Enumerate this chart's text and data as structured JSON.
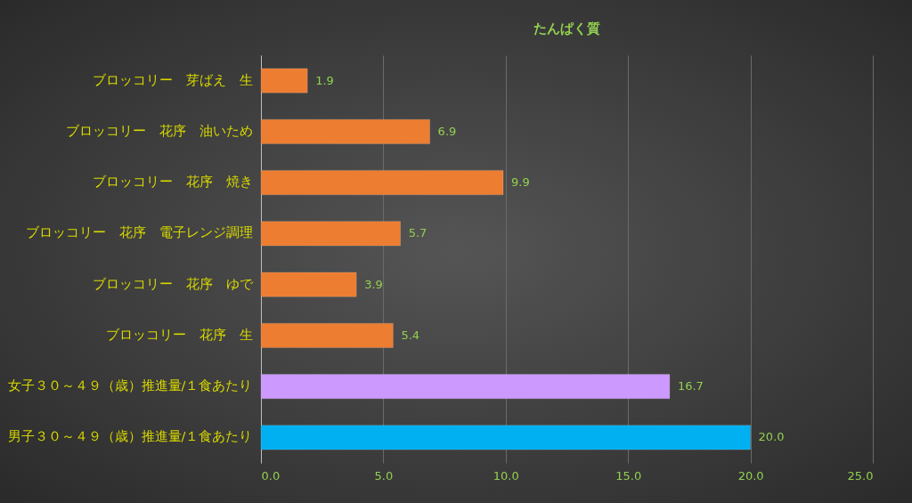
{
  "chart_data": {
    "type": "bar",
    "orientation": "horizontal",
    "title": "たんぱく質",
    "categories": [
      "ブロッコリー　芽ばえ　生",
      "ブロッコリー　花序　油いため",
      "ブロッコリー　花序　焼き",
      "ブロッコリー　花序　電子レンジ調理",
      "ブロッコリー　花序　ゆで",
      "ブロッコリー　花序　生",
      "女子３０～４９（歳）推進量/１食あたり",
      "男子３０～４９（歳）推進量/１食あたり"
    ],
    "values": [
      1.9,
      6.9,
      9.9,
      5.7,
      3.9,
      5.4,
      16.7,
      20.0
    ],
    "colors": [
      "#ed7d31",
      "#ed7d31",
      "#ed7d31",
      "#ed7d31",
      "#ed7d31",
      "#ed7d31",
      "#cc99ff",
      "#00b0f0"
    ],
    "value_labels": [
      "1.9",
      "6.9",
      "9.9",
      "5.7",
      "3.9",
      "5.4",
      "16.7",
      "20.0"
    ],
    "xlim": [
      0,
      25
    ],
    "xticks": [
      {
        "value": 0,
        "label": "0.0"
      },
      {
        "value": 5,
        "label": "5.0"
      },
      {
        "value": 10,
        "label": "10.0"
      },
      {
        "value": 15,
        "label": "15.0"
      },
      {
        "value": 20,
        "label": "20.0"
      },
      {
        "value": 25,
        "label": "25.0"
      }
    ],
    "grid": "x"
  }
}
